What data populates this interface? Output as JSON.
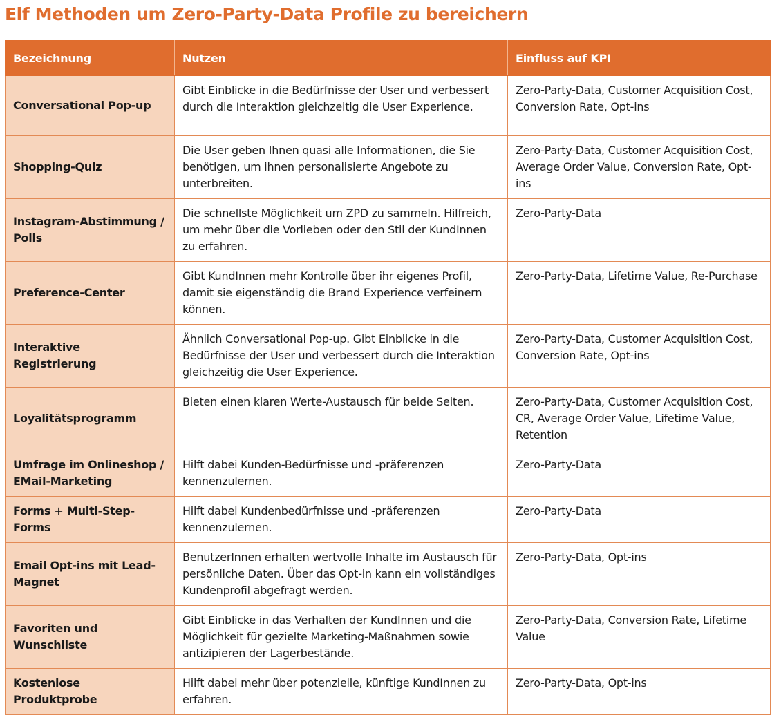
{
  "title": "Elf Methoden um Zero-Party-Data Profile zu bereichern",
  "table": {
    "headers": [
      "Bezeichnung",
      "Nutzen",
      "Einfluss auf KPI"
    ],
    "rows": [
      {
        "name": "Conversational Pop-up",
        "benefit": "Gibt Einblicke in die Bedürfnisse der User und verbessert durch die Interaktion gleichzeitig die User Experience.",
        "kpi": "Zero-Party-Data, Customer Acquisition Cost, Conversion Rate, Opt-ins"
      },
      {
        "name": "Shopping-Quiz",
        "benefit": "Die User geben Ihnen quasi alle Informationen, die Sie benötigen, um ihnen personalisierte Angebote zu unterbreiten.",
        "kpi": "Zero-Party-Data, Customer Acquisition Cost, Average Order Value, Conversion Rate, Opt-ins"
      },
      {
        "name": "Instagram-Abstimmung / Polls",
        "benefit": "Die schnellste Möglichkeit um ZPD zu sammeln. Hilfreich, um mehr über die Vorlieben oder den Stil der KundInnen zu erfahren.",
        "kpi": "Zero-Party-Data"
      },
      {
        "name": "Preference-Center",
        "benefit": "Gibt KundInnen mehr Kontrolle über ihr eigenes Profil, damit sie eigenständig die Brand Experience verfeinern können.",
        "kpi": "Zero-Party-Data, Lifetime Value, Re-Purchase"
      },
      {
        "name": "Interaktive Registrierung",
        "benefit": "Ähnlich Conversational Pop-up. Gibt Einblicke in die Bedürfnisse der User und verbessert durch die Interaktion gleichzeitig die User Experience.",
        "kpi": "Zero-Party-Data, Customer Acquisition Cost, Conversion Rate, Opt-ins"
      },
      {
        "name": "Loyalitätsprogramm",
        "benefit": "Bieten einen klaren Werte-Austausch für beide Seiten.",
        "kpi": "Zero-Party-Data, Customer Acquisition Cost, CR, Average Order Value, Lifetime Value, Retention"
      },
      {
        "name": "Umfrage im Onlineshop / EMail-Marketing",
        "benefit": "Hilft dabei Kunden-Bedürfnisse und -präferenzen kennenzulernen.",
        "kpi": "Zero-Party-Data"
      },
      {
        "name": "Forms + Multi-Step-Forms",
        "benefit": "Hilft dabei Kundenbedürfnisse und -präferenzen kennenzulernen.",
        "kpi": "Zero-Party-Data"
      },
      {
        "name": "Email Opt-ins mit Lead-Magnet",
        "benefit": "BenutzerInnen erhalten wertvolle Inhalte im Austausch für persönliche Daten. Über das Opt-in kann ein vollständiges Kundenprofil abgefragt werden.",
        "kpi": "Zero-Party-Data, Opt-ins"
      },
      {
        "name": "Favoriten und Wunschliste",
        "benefit": "Gibt Einblicke in das Verhalten der KundInnen und die Möglichkeit für gezielte Marketing-Maßnahmen sowie antizipieren der Lagerbestände.",
        "kpi": "Zero-Party-Data, Conversion Rate, Lifetime Value"
      },
      {
        "name": "Kostenlose Produktprobe",
        "benefit": "Hilft dabei mehr über potenzielle, künftige KundInnen zu erfahren.",
        "kpi": "Zero-Party-Data, Opt-ins"
      }
    ]
  },
  "colors": {
    "accent": "#e06d2e",
    "name_cell_bg": "#f7d5bd",
    "border": "#e38a55"
  }
}
